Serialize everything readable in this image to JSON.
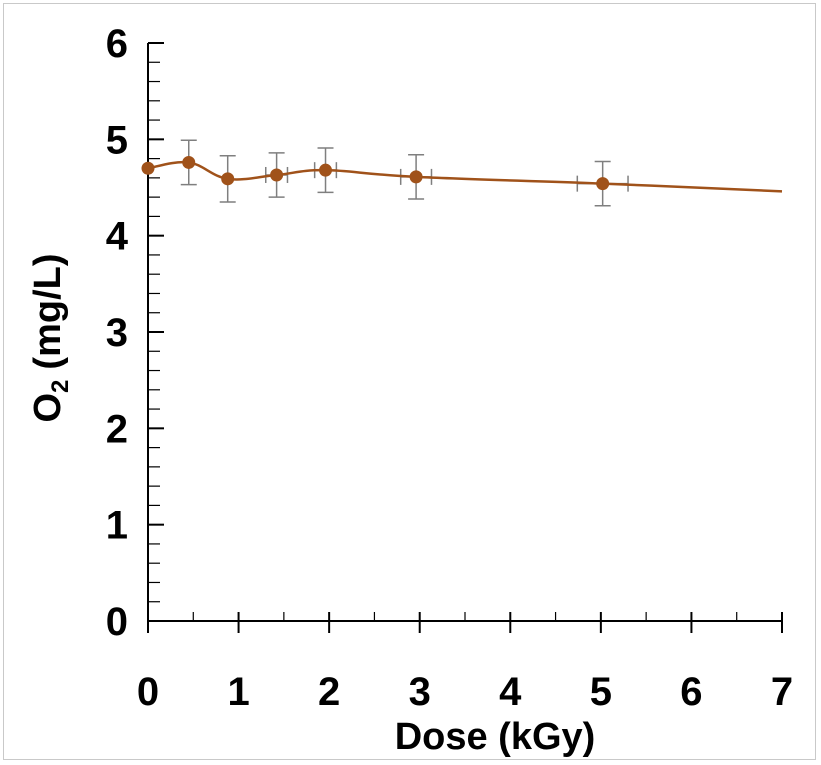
{
  "chart_data": {
    "type": "line",
    "title": "",
    "xlabel": "Dose (kGy)",
    "ylabel": {
      "main": "O",
      "subscript": "2",
      "unit": "(mg/L)"
    },
    "xlim": [
      0,
      7
    ],
    "ylim": [
      0,
      6
    ],
    "xticks": [
      "0",
      "1",
      "2",
      "3",
      "4",
      "5",
      "6",
      "7"
    ],
    "yticks": [
      "0",
      "1",
      "2",
      "3",
      "4",
      "5",
      "6"
    ],
    "grid": false,
    "legend": "none",
    "series": [
      {
        "color": "#a0521a",
        "marker": "circle",
        "points": [
          {
            "x": 0.0,
            "y": 4.7,
            "yerr": 0.0,
            "xerr": 0.0
          },
          {
            "x": 0.45,
            "y": 4.76,
            "yerr": 0.23,
            "xerr": 0.0
          },
          {
            "x": 0.88,
            "y": 4.59,
            "yerr": 0.24,
            "xerr": 0.0
          },
          {
            "x": 1.42,
            "y": 4.63,
            "yerr": 0.23,
            "xerr": 0.12
          },
          {
            "x": 1.96,
            "y": 4.68,
            "yerr": 0.23,
            "xerr": 0.12
          },
          {
            "x": 2.96,
            "y": 4.61,
            "yerr": 0.23,
            "xerr": 0.17
          },
          {
            "x": 5.02,
            "y": 4.54,
            "yerr": 0.23,
            "xerr": 0.28
          },
          {
            "x": 7.0,
            "y": 4.46,
            "yerr": 0.0,
            "xerr": 0.0
          }
        ],
        "markers": [
          true,
          true,
          true,
          true,
          true,
          true,
          true,
          false
        ]
      }
    ],
    "colors": {
      "axis": "#000000",
      "errorbar": "#7f7f7f",
      "line": "#a0521a"
    }
  }
}
